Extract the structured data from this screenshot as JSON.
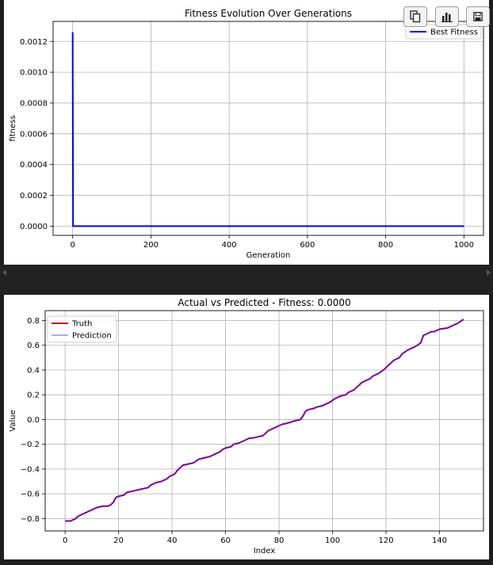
{
  "chart_data": [
    {
      "type": "line",
      "title": "Fitness Evolution Over Generations",
      "xlabel": "Generation",
      "ylabel": "fitness",
      "xlim": [
        -50,
        1050
      ],
      "ylim": [
        -6e-05,
        0.00133
      ],
      "xticks": [
        0,
        200,
        400,
        600,
        800,
        1000
      ],
      "yticks": [
        0.0,
        0.0002,
        0.0004,
        0.0006,
        0.0008,
        0.001,
        0.0012
      ],
      "ytick_labels": [
        "0.0000",
        "0.0002",
        "0.0004",
        "0.0006",
        "0.0008",
        "0.0010",
        "0.0012"
      ],
      "grid": true,
      "legend": "upper right",
      "series": [
        {
          "name": "Best Fitness",
          "color": "#0000ff",
          "x": [
            0,
            1,
            1000
          ],
          "y": [
            0.00126,
            0.0,
            0.0
          ]
        }
      ]
    },
    {
      "type": "line",
      "title": "Actual vs Predicted - Fitness: 0.0000",
      "xlabel": "Index",
      "ylabel": "Value",
      "xlim": [
        -7.45,
        156.45
      ],
      "ylim": [
        -0.9,
        0.88
      ],
      "xticks": [
        0,
        20,
        40,
        60,
        80,
        100,
        120,
        140
      ],
      "yticks": [
        -0.8,
        -0.6,
        -0.4,
        -0.2,
        0.0,
        0.2,
        0.4,
        0.6,
        0.8
      ],
      "ytick_labels": [
        "−0.8",
        "−0.6",
        "−0.4",
        "−0.2",
        "0.0",
        "0.2",
        "0.4",
        "0.6",
        "0.8"
      ],
      "grid": true,
      "legend": "upper left",
      "series": [
        {
          "name": "Truth",
          "color": "#cc0000",
          "x": [
            0,
            2,
            3,
            4,
            5,
            7,
            8,
            9,
            11,
            12,
            14,
            16,
            17,
            18,
            19,
            20,
            22,
            23,
            25,
            27,
            29,
            31,
            32,
            34,
            36,
            38,
            39,
            41,
            42,
            43,
            44,
            46,
            48,
            50,
            52,
            54,
            56,
            58,
            59,
            60,
            62,
            63,
            65,
            67,
            69,
            70,
            72,
            74,
            76,
            77,
            78,
            80,
            81,
            83,
            86,
            88,
            89,
            90,
            91,
            93,
            94,
            96,
            99,
            101,
            102,
            103,
            105,
            106,
            108,
            110,
            111,
            112,
            114,
            115,
            117,
            119,
            120,
            121,
            123,
            125,
            126,
            128,
            129,
            131,
            133,
            134,
            136,
            137,
            138,
            140,
            143,
            144,
            145,
            147,
            149
          ],
          "values": [
            -0.82,
            -0.82,
            -0.81,
            -0.8,
            -0.78,
            -0.76,
            -0.75,
            -0.74,
            -0.72,
            -0.71,
            -0.7,
            -0.7,
            -0.69,
            -0.67,
            -0.63,
            -0.62,
            -0.61,
            -0.59,
            -0.58,
            -0.57,
            -0.56,
            -0.55,
            -0.53,
            -0.51,
            -0.5,
            -0.48,
            -0.46,
            -0.44,
            -0.41,
            -0.39,
            -0.37,
            -0.36,
            -0.35,
            -0.32,
            -0.31,
            -0.3,
            -0.28,
            -0.26,
            -0.24,
            -0.23,
            -0.22,
            -0.2,
            -0.19,
            -0.17,
            -0.15,
            -0.15,
            -0.14,
            -0.13,
            -0.09,
            -0.08,
            -0.07,
            -0.05,
            -0.04,
            -0.03,
            -0.01,
            0.0,
            0.03,
            0.07,
            0.08,
            0.09,
            0.1,
            0.11,
            0.14,
            0.17,
            0.18,
            0.19,
            0.2,
            0.22,
            0.24,
            0.28,
            0.3,
            0.31,
            0.33,
            0.35,
            0.37,
            0.4,
            0.42,
            0.44,
            0.48,
            0.5,
            0.53,
            0.56,
            0.57,
            0.59,
            0.62,
            0.68,
            0.7,
            0.71,
            0.71,
            0.73,
            0.74,
            0.75,
            0.76,
            0.78,
            0.81
          ]
        },
        {
          "name": "Prediction",
          "color": "#5555ff",
          "x": [
            0,
            2,
            3,
            4,
            5,
            7,
            8,
            9,
            11,
            12,
            14,
            16,
            17,
            18,
            19,
            20,
            22,
            23,
            25,
            27,
            29,
            31,
            32,
            34,
            36,
            38,
            39,
            41,
            42,
            43,
            44,
            46,
            48,
            50,
            52,
            54,
            56,
            58,
            59,
            60,
            62,
            63,
            65,
            67,
            69,
            70,
            72,
            74,
            76,
            77,
            78,
            80,
            81,
            83,
            86,
            88,
            89,
            90,
            91,
            93,
            94,
            96,
            99,
            101,
            102,
            103,
            105,
            106,
            108,
            110,
            111,
            112,
            114,
            115,
            117,
            119,
            120,
            121,
            123,
            125,
            126,
            128,
            129,
            131,
            133,
            134,
            136,
            137,
            138,
            140,
            143,
            144,
            145,
            147,
            149
          ],
          "values": [
            -0.82,
            -0.82,
            -0.81,
            -0.8,
            -0.78,
            -0.76,
            -0.75,
            -0.74,
            -0.72,
            -0.71,
            -0.7,
            -0.7,
            -0.69,
            -0.67,
            -0.63,
            -0.62,
            -0.61,
            -0.59,
            -0.58,
            -0.57,
            -0.56,
            -0.55,
            -0.53,
            -0.51,
            -0.5,
            -0.48,
            -0.46,
            -0.44,
            -0.41,
            -0.39,
            -0.37,
            -0.36,
            -0.35,
            -0.32,
            -0.31,
            -0.3,
            -0.28,
            -0.26,
            -0.24,
            -0.23,
            -0.22,
            -0.2,
            -0.19,
            -0.17,
            -0.15,
            -0.15,
            -0.14,
            -0.13,
            -0.09,
            -0.08,
            -0.07,
            -0.05,
            -0.04,
            -0.03,
            -0.01,
            0.0,
            0.03,
            0.07,
            0.08,
            0.09,
            0.1,
            0.11,
            0.14,
            0.17,
            0.18,
            0.19,
            0.2,
            0.22,
            0.24,
            0.28,
            0.3,
            0.31,
            0.33,
            0.35,
            0.37,
            0.4,
            0.42,
            0.44,
            0.48,
            0.5,
            0.53,
            0.56,
            0.57,
            0.59,
            0.62,
            0.68,
            0.7,
            0.71,
            0.71,
            0.73,
            0.74,
            0.75,
            0.76,
            0.78,
            0.81
          ]
        }
      ],
      "overlap_color": "#7a0099"
    }
  ],
  "toolbar": [
    {
      "icon": "copy-icon"
    },
    {
      "icon": "bar-chart-icon"
    },
    {
      "icon": "save-icon"
    }
  ]
}
